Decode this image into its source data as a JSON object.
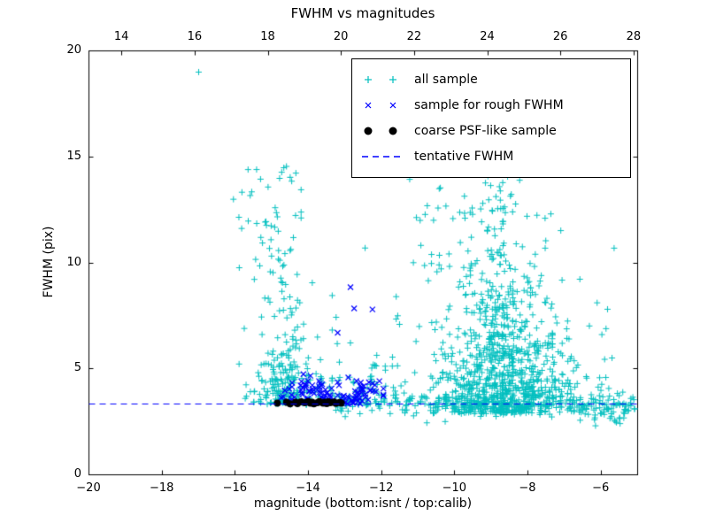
{
  "chart_data": {
    "type": "scatter",
    "title": "FWHM vs magnitudes",
    "xlabel": "magnitude (bottom:isnt / top:calib)",
    "ylabel": "FWHM (pix)",
    "xlim": [
      -20,
      -5
    ],
    "xlim_top": [
      13.1,
      28.1
    ],
    "ylim": [
      0,
      20
    ],
    "xticks_bottom": [
      -20,
      -18,
      -16,
      -14,
      -12,
      -10,
      -8,
      -6
    ],
    "xticks_top": [
      14,
      16,
      18,
      20,
      22,
      24,
      26,
      28
    ],
    "yticks": [
      0,
      5,
      10,
      15,
      20
    ],
    "grid": false,
    "legend_position": "upper right",
    "tentative_fwhm": 3.35,
    "seed": 20240613,
    "colors": {
      "all_sample": "#00bfbf",
      "rough_fwhm": "#0000ff",
      "psf_like": "#000000",
      "tentative_line": "#0000ff",
      "axes": "#000000"
    },
    "series": [
      {
        "name": "all sample",
        "marker": "plus",
        "color": "#00bfbf",
        "clusters": [
          {
            "n": 240,
            "x": {
              "dist": "gauss",
              "mu": -14.55,
              "sigma": 0.5,
              "min": -16.3,
              "max": -13.35
            },
            "y": {
              "dist": "exp",
              "base": 3.3,
              "tau": 1.5,
              "max": 9.5
            }
          },
          {
            "n": 55,
            "x": {
              "dist": "gauss",
              "mu": -15.0,
              "sigma": 0.4,
              "min": -16.2,
              "max": -14.2
            },
            "y": {
              "dist": "power",
              "min": 8,
              "max": 14.5,
              "p": 1.2
            }
          },
          {
            "n": 900,
            "x": {
              "dist": "gauss",
              "mu": -8.6,
              "sigma": 1.05,
              "min": -11.6,
              "max": -5.05
            },
            "y": {
              "dist": "exp",
              "base": 2.9,
              "tau": 2.2,
              "max": 15
            }
          },
          {
            "n": 140,
            "x": {
              "dist": "gauss",
              "mu": -8.85,
              "sigma": 0.3,
              "min": -9.8,
              "max": -7.9
            },
            "y": {
              "dist": "power",
              "min": 5.5,
              "max": 14.5,
              "p": 1.6
            }
          },
          {
            "n": 260,
            "x": {
              "dist": "uniform",
              "min": -13.3,
              "max": -5.05
            },
            "y": {
              "dist": "gauss",
              "mu": 3.3,
              "sigma": 0.28,
              "min": 2.4,
              "max": 4.2
            }
          },
          {
            "n": 60,
            "x": {
              "dist": "uniform",
              "min": -13.5,
              "max": -11.5
            },
            "y": {
              "dist": "exp",
              "base": 3.4,
              "tau": 0.9,
              "max": 8
            }
          },
          {
            "n": 30,
            "x": {
              "dist": "uniform",
              "min": -11.3,
              "max": -9.3
            },
            "y": {
              "dist": "power",
              "min": 9,
              "max": 14.6,
              "p": 1
            }
          },
          {
            "n": 40,
            "x": {
              "dist": "uniform",
              "min": -6.6,
              "max": -5.05
            },
            "y": {
              "dist": "gauss",
              "mu": 3.05,
              "sigma": 0.35,
              "min": 2.3,
              "max": 3.9
            }
          }
        ],
        "points": [
          [
            -17.0,
            19.0
          ],
          [
            -16.05,
            13.0
          ],
          [
            -15.9,
            12.15
          ],
          [
            -15.65,
            14.4
          ],
          [
            -15.55,
            13.35
          ],
          [
            -15.3,
            11.2
          ],
          [
            -14.6,
            14.55
          ],
          [
            -12.45,
            10.7
          ]
        ]
      },
      {
        "name": "sample for rough FWHM",
        "marker": "x",
        "color": "#0000ff",
        "clusters": [
          {
            "n": 45,
            "x": {
              "dist": "gauss",
              "mu": -13.9,
              "sigma": 0.35,
              "min": -14.85,
              "max": -13.2
            },
            "y": {
              "dist": "gauss",
              "mu": 4.05,
              "sigma": 0.3,
              "min": 3.45,
              "max": 4.75
            }
          },
          {
            "n": 50,
            "x": {
              "dist": "gauss",
              "mu": -12.6,
              "sigma": 0.3,
              "min": -13.2,
              "max": -11.95
            },
            "y": {
              "dist": "gauss",
              "mu": 3.85,
              "sigma": 0.28,
              "min": 3.35,
              "max": 4.6
            }
          },
          {
            "n": 20,
            "x": {
              "dist": "uniform",
              "min": -14.6,
              "max": -13.3
            },
            "y": {
              "dist": "gauss",
              "mu": 3.55,
              "sigma": 0.1,
              "min": 3.4,
              "max": 3.8
            }
          }
        ],
        "points": [
          [
            -13.2,
            6.7
          ],
          [
            -12.85,
            8.85
          ],
          [
            -12.75,
            7.85
          ],
          [
            -12.25,
            7.8
          ]
        ]
      },
      {
        "name": "coarse PSF-like sample",
        "marker": "dot",
        "color": "#000000",
        "points": [
          [
            -14.85,
            3.38
          ],
          [
            -14.6,
            3.42
          ],
          [
            -14.5,
            3.35
          ],
          [
            -14.35,
            3.42
          ],
          [
            -14.3,
            3.36
          ],
          [
            -14.2,
            3.44
          ],
          [
            -14.1,
            3.4
          ],
          [
            -14.0,
            3.45
          ],
          [
            -13.95,
            3.38
          ],
          [
            -13.9,
            3.42
          ],
          [
            -13.85,
            3.35
          ],
          [
            -13.75,
            3.4
          ],
          [
            -13.7,
            3.46
          ],
          [
            -13.6,
            3.38
          ],
          [
            -13.55,
            3.42
          ],
          [
            -13.5,
            3.36
          ],
          [
            -13.45,
            3.44
          ],
          [
            -13.4,
            3.4
          ],
          [
            -13.3,
            3.43
          ],
          [
            -13.25,
            3.37
          ],
          [
            -13.15,
            3.41
          ],
          [
            -13.1,
            3.38
          ]
        ]
      },
      {
        "name": "tentative FWHM",
        "marker": "dashline",
        "color": "#0000ff",
        "y": 3.35
      }
    ]
  }
}
